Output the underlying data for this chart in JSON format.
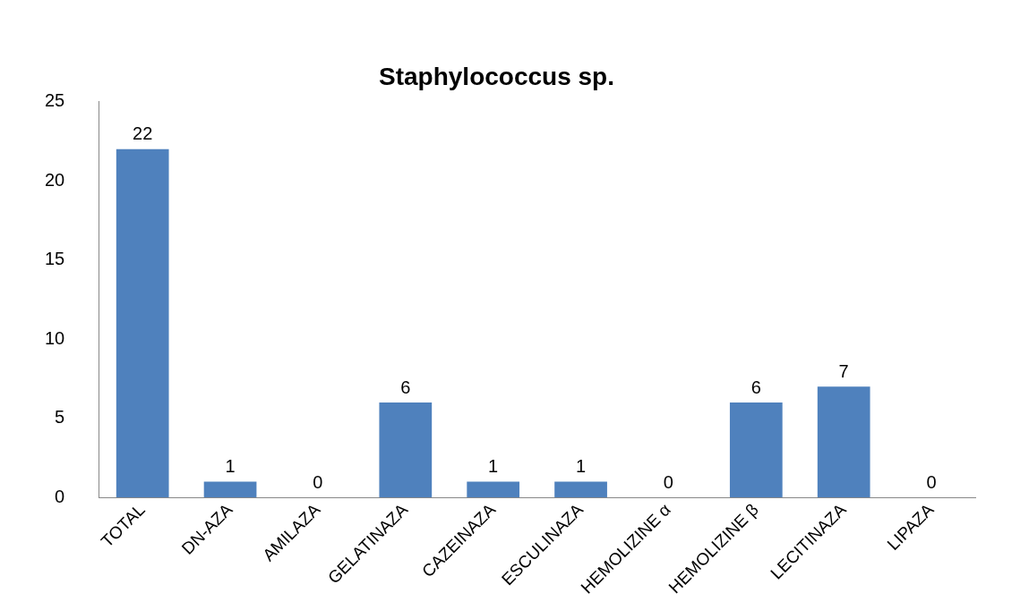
{
  "chart_data": {
    "type": "bar",
    "title": "Staphylococcus sp.",
    "categories": [
      "TOTAL",
      "DN-AZA",
      "AMILAZA",
      "GELATINAZA",
      "CAZEINAZA",
      "ESCULINAZA",
      "HEMOLIZINE α",
      "HEMOLIZINE β",
      "LECITINAZA",
      "LIPAZA"
    ],
    "values": [
      22,
      1,
      0,
      6,
      1,
      1,
      0,
      6,
      7,
      0
    ],
    "color": "#4f81bd",
    "ylim": [
      0,
      25
    ],
    "yticks": [
      0,
      5,
      10,
      15,
      20,
      25
    ],
    "grid": false,
    "legend": false,
    "data_labels": true
  }
}
